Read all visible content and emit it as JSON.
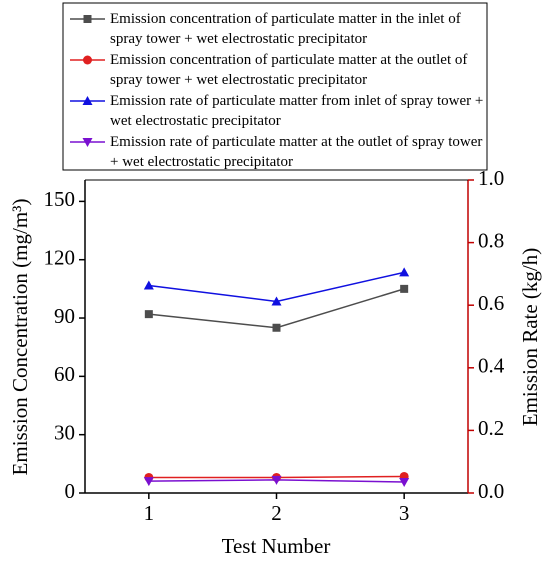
{
  "chart_data": {
    "type": "line",
    "x_label": "Test Number",
    "y_label": "Emission Concentration (mg/m³)",
    "y2_label": "Emission Rate (kg/h)",
    "x": [
      1,
      2,
      3
    ],
    "xlim": [
      0.5,
      3.5
    ],
    "xticks": [
      1,
      2,
      3
    ],
    "ylim": [
      0,
      161
    ],
    "yticks": [
      0,
      30,
      60,
      90,
      120,
      150
    ],
    "y2lim": [
      0,
      1
    ],
    "y2ticks": [
      {
        "value": 0,
        "label": "0.0"
      },
      0.2,
      0.4,
      0.6,
      0.8,
      {
        "value": 1,
        "label": "1.0"
      }
    ],
    "y2_color": "#c00000",
    "series": [
      {
        "name": "Emission concentration of particulate matter in the inlet of spray tower + wet electrostatic precipitator",
        "color": "#4d4d4d",
        "marker": "square",
        "values": [
          92,
          85,
          105
        ]
      },
      {
        "name": "Emission concentration of particulate matter at the outlet of spray tower + wet electrostatic precipitator",
        "color": "#e02020",
        "marker": "circle",
        "values": [
          8,
          8,
          8.5
        ]
      },
      {
        "name": "Emission rate of particulate matter from inlet of spray tower + wet electrostatic precipitator",
        "color": "#1010e0",
        "marker": "triangle-up",
        "axis": "y2",
        "values": [
          0.663,
          0.612,
          0.705
        ]
      },
      {
        "name": "Emission rate of particulate matter at the outlet of spray tower + wet electrostatic precipitator",
        "color": "#7a10d0",
        "marker": "triangle-down",
        "axis": "y2",
        "values": [
          0.038,
          0.042,
          0.035
        ]
      }
    ]
  }
}
